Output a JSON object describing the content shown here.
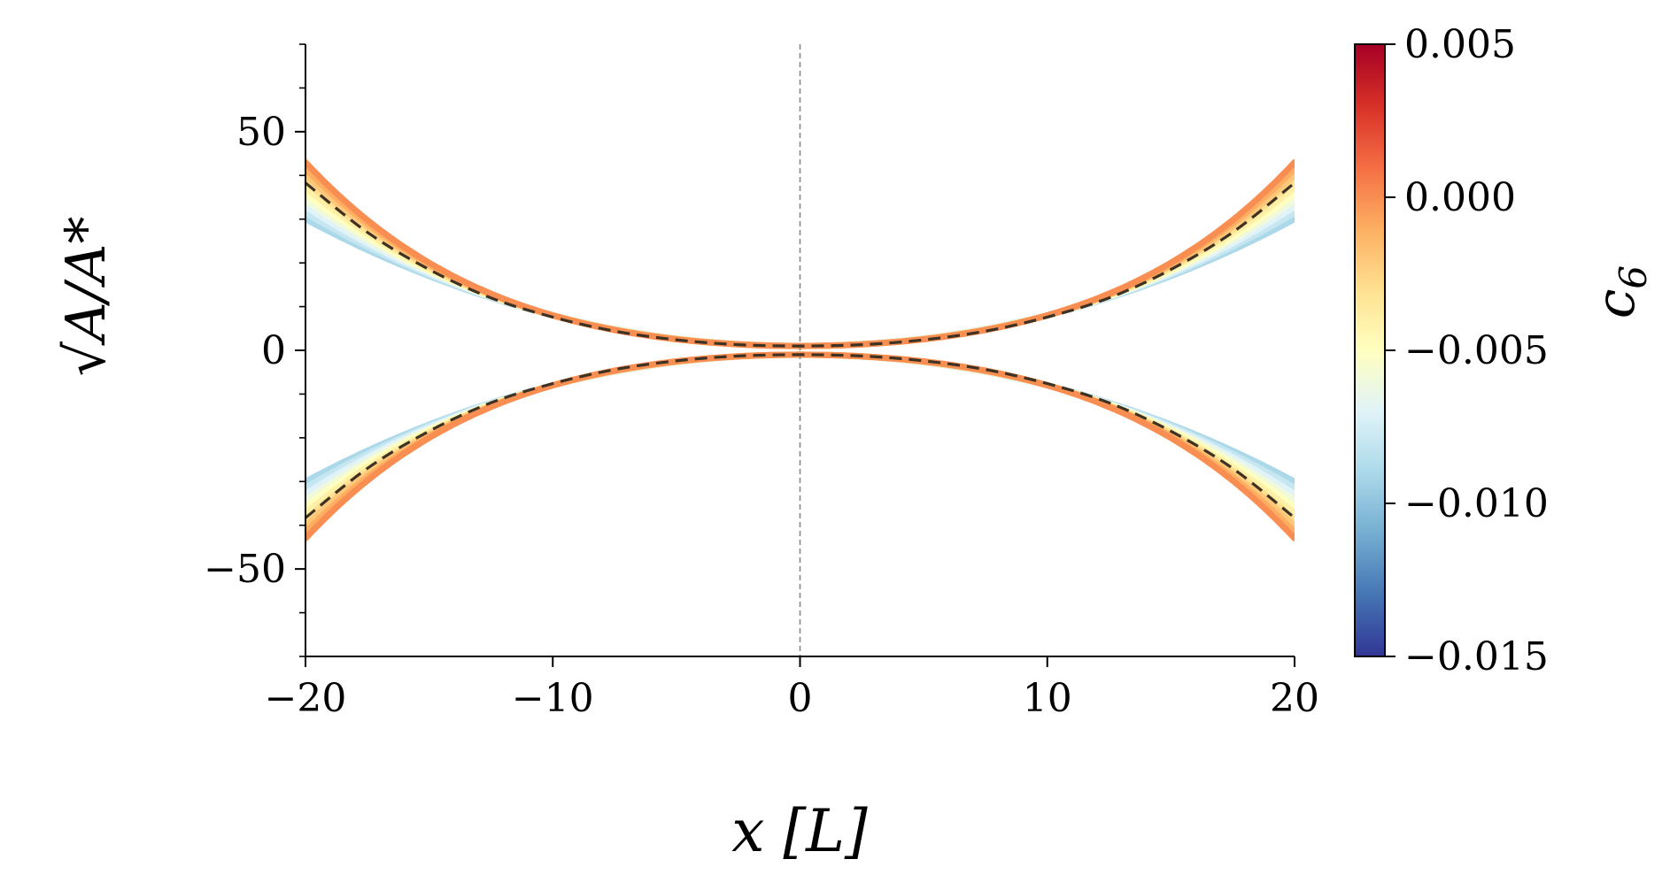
{
  "chart_data": {
    "type": "line",
    "title": "",
    "xlabel": "x [L]",
    "ylabel": "√A/A*",
    "xlim": [
      -20,
      20
    ],
    "ylim": [
      -70,
      70
    ],
    "x_ticks": [
      "−20",
      "−10",
      "0",
      "10",
      "20"
    ],
    "y_ticks": [
      "−50",
      "0",
      "50"
    ],
    "x_tick_values": [
      -20,
      -10,
      0,
      10,
      20
    ],
    "y_tick_values": [
      -50,
      0,
      50
    ],
    "reference_vline_x": 0,
    "colorbar": {
      "label": "c6",
      "label_main": "c",
      "label_sub": "6",
      "range": [
        -0.015,
        0.005
      ],
      "ticks": [
        "0.005",
        "0.000",
        "−0.005",
        "−0.010",
        "−0.015"
      ],
      "tick_values": [
        0.005,
        0.0,
        -0.005,
        -0.01,
        -0.015
      ],
      "colormap": "RdYlBu_r",
      "colormap_stops": [
        "#313695",
        "#4575b4",
        "#74add1",
        "#abd9e9",
        "#e0f3f8",
        "#ffffbf",
        "#fee090",
        "#fdae61",
        "#f46d43",
        "#d73027",
        "#a50026"
      ]
    },
    "curve_family": {
      "description_values": "symmetric upper/lower envelopes; half-width at x = ±20 varies with c6",
      "c6_values": [
        -0.009,
        -0.008,
        -0.007,
        -0.006,
        -0.005,
        -0.004,
        -0.003,
        -0.002,
        -0.001,
        0.0
      ],
      "half_width_at_x0": 1.0,
      "half_width_at_x10": 8.0,
      "half_width_at_x20_min": 30,
      "half_width_at_x20_max": 43
    },
    "series": [
      {
        "style": "dashed",
        "color": "#3d3223",
        "x": [
          -20,
          -17.5,
          -15,
          -12.5,
          -10,
          -7.5,
          -5,
          -2.5,
          0,
          2.5,
          5,
          7.5,
          10,
          12.5,
          15,
          17.5,
          20
        ],
        "y_upper": [
          38.3,
          27.0,
          18.5,
          12.0,
          7.6,
          4.4,
          2.4,
          1.3,
          1.0,
          1.3,
          2.4,
          4.4,
          7.6,
          12.0,
          18.5,
          27.0,
          38.3
        ],
        "y_lower": [
          -38.3,
          -27.0,
          -18.5,
          -12.0,
          -7.6,
          -4.4,
          -2.4,
          -1.3,
          -1.0,
          -1.3,
          -2.4,
          -4.4,
          -7.6,
          -12.0,
          -18.5,
          -27.0,
          -38.3
        ]
      }
    ],
    "grid": false,
    "legend": "none"
  }
}
